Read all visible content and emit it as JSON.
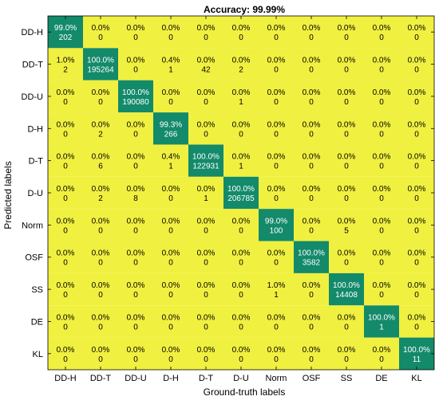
{
  "chart_data": {
    "type": "heatmap",
    "title": "Accuracy: 99.99%",
    "xlabel": "Ground-truth labels",
    "ylabel": "Predicted labels",
    "x_categories": [
      "DD-H",
      "DD-T",
      "DD-U",
      "D-H",
      "D-T",
      "D-U",
      "Norm",
      "OSF",
      "SS",
      "DE",
      "KL"
    ],
    "y_categories": [
      "DD-H",
      "DD-T",
      "DD-U",
      "D-H",
      "D-T",
      "D-U",
      "Norm",
      "OSF",
      "SS",
      "DE",
      "KL"
    ],
    "percent_labels": [
      [
        "99.0%",
        "0.0%",
        "0.0%",
        "0.0%",
        "0.0%",
        "0.0%",
        "0.0%",
        "0.0%",
        "0.0%",
        "0.0%",
        "0.0%"
      ],
      [
        "1.0%",
        "100.0%",
        "0.0%",
        "0.4%",
        "0.0%",
        "0.0%",
        "0.0%",
        "0.0%",
        "0.0%",
        "0.0%",
        "0.0%"
      ],
      [
        "0.0%",
        "0.0%",
        "100.0%",
        "0.0%",
        "0.0%",
        "0.0%",
        "0.0%",
        "0.0%",
        "0.0%",
        "0.0%",
        "0.0%"
      ],
      [
        "0.0%",
        "0.0%",
        "0.0%",
        "99.3%",
        "0.0%",
        "0.0%",
        "0.0%",
        "0.0%",
        "0.0%",
        "0.0%",
        "0.0%"
      ],
      [
        "0.0%",
        "0.0%",
        "0.0%",
        "0.4%",
        "100.0%",
        "0.0%",
        "0.0%",
        "0.0%",
        "0.0%",
        "0.0%",
        "0.0%"
      ],
      [
        "0.0%",
        "0.0%",
        "0.0%",
        "0.0%",
        "0.0%",
        "100.0%",
        "0.0%",
        "0.0%",
        "0.0%",
        "0.0%",
        "0.0%"
      ],
      [
        "0.0%",
        "0.0%",
        "0.0%",
        "0.0%",
        "0.0%",
        "0.0%",
        "99.0%",
        "0.0%",
        "0.0%",
        "0.0%",
        "0.0%"
      ],
      [
        "0.0%",
        "0.0%",
        "0.0%",
        "0.0%",
        "0.0%",
        "0.0%",
        "0.0%",
        "100.0%",
        "0.0%",
        "0.0%",
        "0.0%"
      ],
      [
        "0.0%",
        "0.0%",
        "0.0%",
        "0.0%",
        "0.0%",
        "0.0%",
        "1.0%",
        "0.0%",
        "100.0%",
        "0.0%",
        "0.0%"
      ],
      [
        "0.0%",
        "0.0%",
        "0.0%",
        "0.0%",
        "0.0%",
        "0.0%",
        "0.0%",
        "0.0%",
        "0.0%",
        "100.0%",
        "0.0%"
      ],
      [
        "0.0%",
        "0.0%",
        "0.0%",
        "0.0%",
        "0.0%",
        "0.0%",
        "0.0%",
        "0.0%",
        "0.0%",
        "0.0%",
        "100.0%"
      ]
    ],
    "counts": [
      [
        202,
        0,
        0,
        0,
        0,
        0,
        0,
        0,
        0,
        0,
        0
      ],
      [
        2,
        195264,
        0,
        1,
        42,
        2,
        0,
        0,
        0,
        0,
        0
      ],
      [
        0,
        0,
        190080,
        0,
        0,
        1,
        0,
        0,
        0,
        0,
        0
      ],
      [
        0,
        2,
        0,
        266,
        0,
        0,
        0,
        0,
        0,
        0,
        0
      ],
      [
        0,
        6,
        0,
        1,
        122931,
        1,
        0,
        0,
        0,
        0,
        0
      ],
      [
        0,
        2,
        8,
        0,
        1,
        206785,
        0,
        0,
        0,
        0,
        0
      ],
      [
        0,
        0,
        0,
        0,
        0,
        0,
        100,
        0,
        5,
        0,
        0
      ],
      [
        0,
        0,
        0,
        0,
        0,
        0,
        0,
        3582,
        0,
        0,
        0
      ],
      [
        0,
        0,
        0,
        0,
        0,
        0,
        1,
        0,
        14408,
        0,
        0
      ],
      [
        0,
        0,
        0,
        0,
        0,
        0,
        0,
        0,
        0,
        1,
        0
      ],
      [
        0,
        0,
        0,
        0,
        0,
        0,
        0,
        0,
        0,
        0,
        11
      ]
    ],
    "colors": {
      "off_diagonal": "#f0f040",
      "diagonal": "#138a6a",
      "diagonal_text": "#ffffff",
      "off_diagonal_text": "#000000"
    },
    "grid": false,
    "legend": "none"
  }
}
